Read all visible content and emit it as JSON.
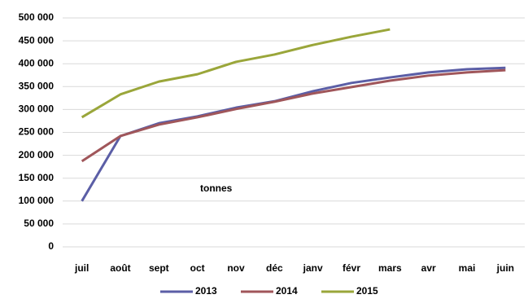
{
  "chart_data": {
    "type": "line",
    "annotation": "tonnes",
    "categories": [
      "juil",
      "août",
      "sept",
      "oct",
      "nov",
      "déc",
      "janv",
      "févr",
      "mars",
      "avr",
      "mai",
      "juin"
    ],
    "series": [
      {
        "name": "2013",
        "color": "#5b5ea6",
        "values": [
          100000,
          242000,
          270000,
          285000,
          304000,
          318000,
          340000,
          358000,
          370000,
          381000,
          388000,
          391000
        ]
      },
      {
        "name": "2014",
        "color": "#a0565a",
        "values": [
          187000,
          242000,
          267000,
          283000,
          301000,
          317000,
          335000,
          349000,
          363000,
          374000,
          381000,
          386000
        ]
      },
      {
        "name": "2015",
        "color": "#9aa63a",
        "values": [
          283000,
          333000,
          361000,
          377000,
          404000,
          420000,
          441000,
          459000,
          475000,
          null,
          null,
          null
        ]
      }
    ],
    "ylim": [
      0,
      500000
    ],
    "yticks": [
      0,
      {
        "value": 50000,
        "label": "50 000"
      },
      {
        "value": 100000,
        "label": "100 000"
      },
      {
        "value": 150000,
        "label": "150 000"
      },
      {
        "value": 200000,
        "label": "200 000"
      },
      {
        "value": 250000,
        "label": "250 000"
      },
      {
        "value": 300000,
        "label": "300 000"
      },
      {
        "value": 350000,
        "label": "350 000"
      },
      {
        "value": 400000,
        "label": "400 000"
      },
      {
        "value": 450000,
        "label": "450 000"
      },
      {
        "value": 500000,
        "label": "500 000"
      }
    ],
    "grid": true,
    "legend": "bottom"
  }
}
